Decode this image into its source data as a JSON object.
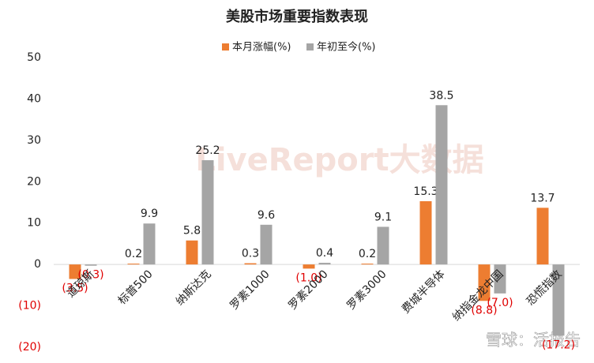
{
  "chart_data": {
    "type": "bar",
    "title": "美股市场重要指数表现",
    "categories": [
      "道琼斯",
      "标普500",
      "纳斯达克",
      "罗素1000",
      "罗素2000",
      "罗素3000",
      "费城半导体",
      "纳指金龙中国",
      "恐慌指数"
    ],
    "series": [
      {
        "name": "本月涨幅(%)",
        "color": "#ed7d31",
        "values": [
          -3.5,
          0.2,
          5.8,
          0.3,
          -1.0,
          0.2,
          15.3,
          -8.8,
          13.7
        ],
        "value_labels": [
          "(3.5)",
          "0.2",
          "5.8",
          "0.3",
          "(1.0)",
          "0.2",
          "15.3",
          "(8.8)",
          "13.7"
        ]
      },
      {
        "name": "年初至今(%)",
        "color": "#a5a5a5",
        "values": [
          -0.3,
          9.9,
          25.2,
          9.6,
          0.4,
          9.1,
          38.5,
          -7.0,
          -17.2
        ],
        "value_labels": [
          "(0.3)",
          "9.9",
          "25.2",
          "9.6",
          "0.4",
          "9.1",
          "38.5",
          "(7.0)",
          "(17.2)"
        ]
      }
    ],
    "ylim": [
      -20,
      50
    ],
    "yticks": [
      {
        "value": -20,
        "label": "(20)"
      },
      {
        "value": -10,
        "label": "(10)"
      },
      0,
      10,
      20,
      30,
      40,
      50
    ],
    "negative_color": "#e00000",
    "grid": false,
    "legend": "top",
    "watermarks": [
      "LiveReport大数据",
      "雪球：活报告"
    ]
  }
}
